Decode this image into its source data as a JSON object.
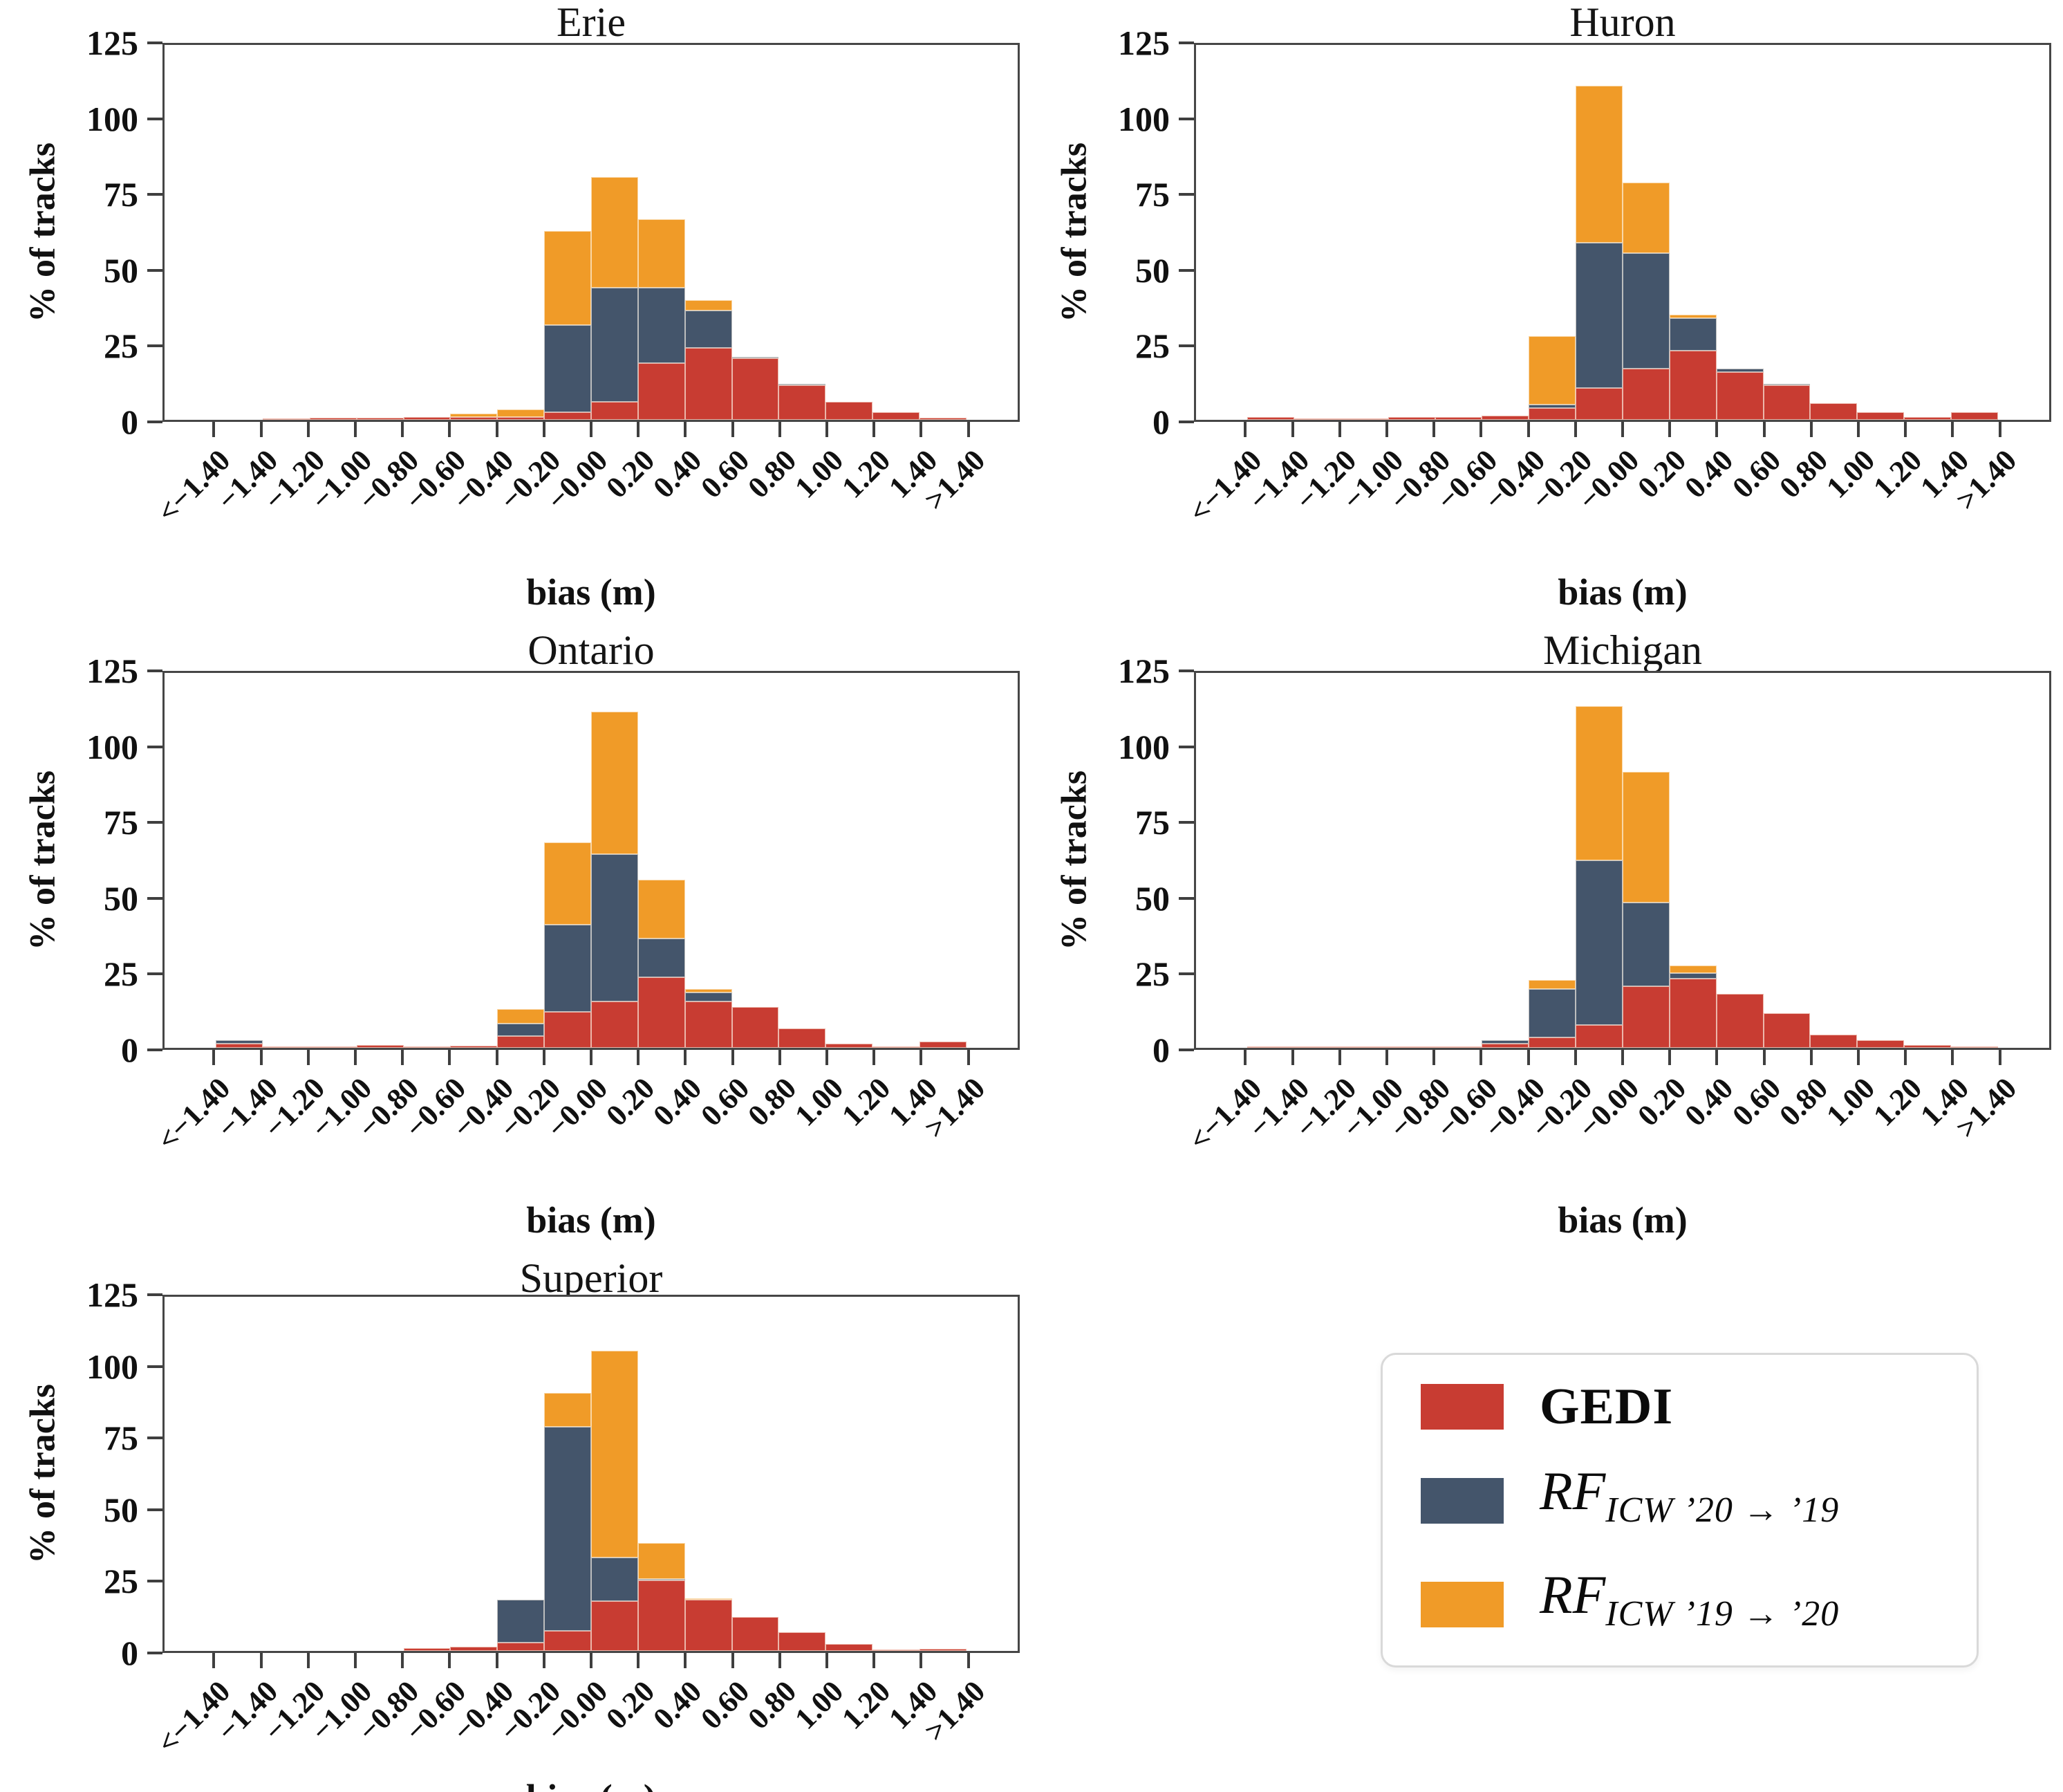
{
  "legend": {
    "items": [
      {
        "label": "GEDI",
        "sub": "",
        "color": "#c83c32"
      },
      {
        "label": "RF",
        "sub": "ICW ’20 → ’19",
        "color": "#44556b"
      },
      {
        "label": "RF",
        "sub": "ICW ’19 → ’20",
        "color": "#f09b28"
      }
    ]
  },
  "layout_hints": {
    "grid": false,
    "legend_position": "bottom-right-cell",
    "rows": 3,
    "cols": 2
  },
  "chart_data": [
    {
      "type": "bar",
      "subtype": "stacked-histogram",
      "title": "Erie",
      "xlabel": "bias (m)",
      "ylabel": "% of tracks",
      "ylim": [
        0,
        125
      ],
      "yticks": [
        0,
        25,
        50,
        75,
        100,
        125
      ],
      "bin_labels": [
        "<−1.40",
        "−1.40",
        "−1.20",
        "−1.00",
        "−0.80",
        "−0.60",
        "−0.40",
        "−0.20",
        "−0.00",
        "0.20",
        "0.40",
        "0.60",
        "0.80",
        "1.00",
        "1.20",
        "1.40",
        ">1.40"
      ],
      "series": [
        {
          "name": "GEDI",
          "color": "#c83c32",
          "values": [
            0,
            0.5,
            0.7,
            0.7,
            1,
            1,
            1,
            2.5,
            6,
            19,
            24,
            20.5,
            11.5,
            6,
            2.5,
            0.7
          ]
        },
        {
          "name": "RF_ICW ’20→’19",
          "color": "#44556b",
          "values": [
            0,
            0,
            0,
            0,
            0,
            0,
            0,
            29,
            38,
            25,
            12.5,
            0.5,
            0.5,
            0,
            0,
            0
          ]
        },
        {
          "name": "RF_ICW ’19→’20",
          "color": "#f09b28",
          "values": [
            0,
            0,
            0,
            0,
            0,
            1,
            2.5,
            31.5,
            37,
            23,
            3.5,
            0,
            0,
            0,
            0,
            0
          ]
        }
      ]
    },
    {
      "type": "bar",
      "subtype": "stacked-histogram",
      "title": "Huron",
      "xlabel": "bias (m)",
      "ylabel": "% of tracks",
      "ylim": [
        0,
        125
      ],
      "yticks": [
        0,
        25,
        50,
        75,
        100,
        125
      ],
      "bin_labels": [
        "<−1.40",
        "−1.40",
        "−1.20",
        "−1.00",
        "−0.80",
        "−0.60",
        "−0.40",
        "−0.20",
        "−0.00",
        "0.20",
        "0.40",
        "0.60",
        "0.80",
        "1.00",
        "1.20",
        "1.40",
        ">1.40"
      ],
      "series": [
        {
          "name": "GEDI",
          "color": "#c83c32",
          "values": [
            1,
            0.3,
            0.5,
            1,
            1,
            1.5,
            4,
            10.5,
            17,
            23,
            16,
            11.5,
            5.5,
            2.5,
            1,
            2.5
          ]
        },
        {
          "name": "RF_ICW ’20→’19",
          "color": "#44556b",
          "values": [
            0,
            0,
            0,
            0,
            0,
            0,
            1,
            48.5,
            38.5,
            11,
            1,
            0.5,
            0,
            0,
            0,
            0
          ]
        },
        {
          "name": "RF_ICW ’19→’20",
          "color": "#f09b28",
          "values": [
            0,
            0,
            0,
            0,
            0,
            0,
            23,
            52.5,
            23.5,
            1,
            0,
            0,
            0,
            0,
            0,
            0
          ]
        }
      ]
    },
    {
      "type": "bar",
      "subtype": "stacked-histogram",
      "title": "Ontario",
      "xlabel": "bias (m)",
      "ylabel": "% of tracks",
      "ylim": [
        0,
        125
      ],
      "yticks": [
        0,
        25,
        50,
        75,
        100,
        125
      ],
      "bin_labels": [
        "<−1.40",
        "−1.40",
        "−1.20",
        "−1.00",
        "−0.80",
        "−0.60",
        "−0.40",
        "−0.20",
        "−0.00",
        "0.20",
        "0.40",
        "0.60",
        "0.80",
        "1.00",
        "1.20",
        "1.40",
        ">1.40"
      ],
      "series": [
        {
          "name": "GEDI",
          "color": "#c83c32",
          "values": [
            1.5,
            0.3,
            0.3,
            1,
            0.5,
            0.8,
            4,
            12,
            15.5,
            23.5,
            15.5,
            13.5,
            6.5,
            1.5,
            0.3,
            2
          ]
        },
        {
          "name": "RF_ICW ’20→’19",
          "color": "#44556b",
          "values": [
            1,
            0,
            0,
            0,
            0,
            0,
            4,
            29,
            49,
            13,
            3,
            0,
            0,
            0,
            0,
            0
          ]
        },
        {
          "name": "RF_ICW ’19→’20",
          "color": "#f09b28",
          "values": [
            0,
            0,
            0,
            0,
            0,
            0,
            5,
            27.5,
            47.5,
            19.5,
            1,
            0,
            0,
            0,
            0,
            0
          ]
        }
      ]
    },
    {
      "type": "bar",
      "subtype": "stacked-histogram",
      "title": "Michigan",
      "xlabel": "bias (m)",
      "ylabel": "% of tracks",
      "ylim": [
        0,
        125
      ],
      "yticks": [
        0,
        25,
        50,
        75,
        100,
        125
      ],
      "bin_labels": [
        "<−1.40",
        "−1.40",
        "−1.20",
        "−1.00",
        "−0.80",
        "−0.60",
        "−0.40",
        "−0.20",
        "−0.00",
        "0.20",
        "0.40",
        "0.60",
        "0.80",
        "1.00",
        "1.20",
        "1.40",
        ">1.40"
      ],
      "series": [
        {
          "name": "GEDI",
          "color": "#c83c32",
          "values": [
            0.5,
            0.3,
            0.3,
            0.3,
            0.5,
            1.5,
            3.5,
            7.5,
            20.5,
            23,
            18,
            11.5,
            4.5,
            2.5,
            1,
            0.5
          ]
        },
        {
          "name": "RF_ICW ’20→’19",
          "color": "#44556b",
          "values": [
            0,
            0,
            0,
            0,
            0,
            1,
            16,
            55,
            28,
            2,
            0,
            0,
            0,
            0,
            0,
            0
          ]
        },
        {
          "name": "RF_ICW ’19→’20",
          "color": "#f09b28",
          "values": [
            0,
            0,
            0,
            0,
            0,
            0,
            3,
            51.5,
            43.5,
            2.5,
            0,
            0,
            0,
            0,
            0,
            0
          ]
        }
      ]
    },
    {
      "type": "bar",
      "subtype": "stacked-histogram",
      "title": "Superior",
      "xlabel": "bias (m)",
      "ylabel": "% of tracks",
      "ylim": [
        0,
        125
      ],
      "yticks": [
        0,
        25,
        50,
        75,
        100,
        125
      ],
      "bin_labels": [
        "<−1.40",
        "−1.40",
        "−1.20",
        "−1.00",
        "−0.80",
        "−0.60",
        "−0.40",
        "−0.20",
        "−0.00",
        "0.20",
        "0.40",
        "0.60",
        "0.80",
        "1.00",
        "1.20",
        "1.40",
        ">1.40"
      ],
      "series": [
        {
          "name": "GEDI",
          "color": "#c83c32",
          "values": [
            0,
            0,
            0,
            0,
            1,
            1.5,
            3,
            7,
            17.5,
            25,
            18,
            12,
            6.5,
            2.5,
            0.5,
            0.7
          ]
        },
        {
          "name": "RF_ICW ’20→’19",
          "color": "#44556b",
          "values": [
            0,
            0,
            0,
            0,
            0,
            0,
            15,
            72,
            15.5,
            0.5,
            0,
            0,
            0,
            0,
            0,
            0
          ]
        },
        {
          "name": "RF_ICW ’19→’20",
          "color": "#f09b28",
          "values": [
            0,
            0,
            0,
            0,
            0,
            0,
            0,
            12,
            73,
            12.5,
            0.5,
            0,
            0,
            0,
            0,
            0
          ]
        }
      ]
    }
  ]
}
